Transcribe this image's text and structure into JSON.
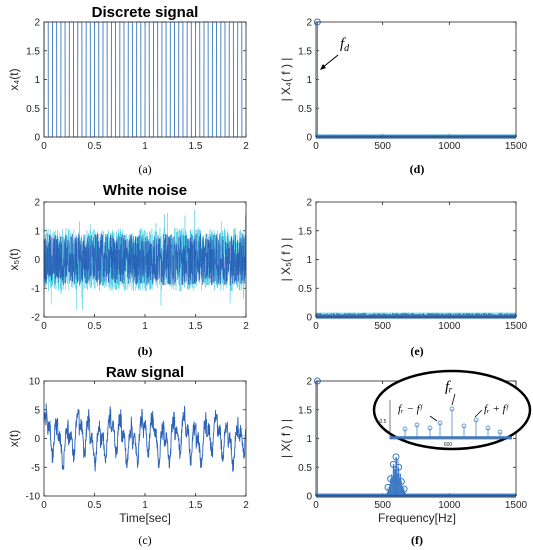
{
  "colors": {
    "signal": "#2a62b8",
    "signal_light": "#4fd0e6",
    "marker": "#3b78c4",
    "axis": "#262626"
  },
  "chart_data": [
    {
      "type": "line",
      "title": "Discrete signal",
      "ylabel": "x₄(t)",
      "xlabel": "",
      "panel_label": "(a)",
      "xlim": [
        0,
        2
      ],
      "ylim": [
        0,
        2
      ],
      "xticks": [
        "0",
        "0.5",
        "1",
        "1.5",
        "2"
      ],
      "yticks": [
        "0",
        "0.5",
        "1",
        "1.5",
        "2"
      ],
      "signal": "square",
      "amplitude": [
        0,
        2
      ],
      "cycles": 24
    },
    {
      "type": "line",
      "title": "",
      "ylabel": "| X₄( f ) |",
      "xlabel": "",
      "panel_label": "(d)",
      "xlim": [
        0,
        1500
      ],
      "ylim": [
        0,
        2
      ],
      "xticks": [
        "0",
        "500",
        "1000",
        "1500"
      ],
      "yticks": [
        "0",
        "0.5",
        "1",
        "1.5",
        "2"
      ],
      "peaks": [
        {
          "x": 10,
          "y": 2
        }
      ],
      "annotation": "f_d"
    },
    {
      "type": "line",
      "title": "White noise",
      "ylabel": "x₅(t)",
      "xlabel": "",
      "panel_label": "(b)",
      "xlim": [
        0,
        2
      ],
      "ylim": [
        -2,
        2
      ],
      "xticks": [
        "0",
        "0.5",
        "1",
        "1.5",
        "2"
      ],
      "yticks": [
        "-2",
        "-1",
        "0",
        "1",
        "2"
      ],
      "signal": "noise",
      "noise_range": [
        -1.6,
        1.6
      ]
    },
    {
      "type": "line",
      "title": "",
      "ylabel": "| X₅( f ) |",
      "xlabel": "",
      "panel_label": "(e)",
      "xlim": [
        0,
        1500
      ],
      "ylim": [
        0,
        2
      ],
      "xticks": [
        "0",
        "500",
        "1000",
        "1500"
      ],
      "yticks": [
        "0",
        "0.5",
        "1",
        "1.5",
        "2"
      ],
      "noise_floor": 0.05
    },
    {
      "type": "line",
      "title": "Raw signal",
      "ylabel": "x(t)",
      "xlabel": "Time[sec]",
      "panel_label": "(c)",
      "xlim": [
        0,
        2
      ],
      "ylim": [
        -10,
        10
      ],
      "xticks": [
        "0",
        "0.5",
        "1",
        "1.5",
        "2"
      ],
      "yticks": [
        "-10",
        "-5",
        "0",
        "5",
        "10"
      ],
      "signal": "raw",
      "range": [
        -6,
        7
      ]
    },
    {
      "type": "line",
      "title": "",
      "ylabel": "| X( f ) |",
      "xlabel": "Frequency[Hz]",
      "panel_label": "(f)",
      "xlim": [
        0,
        1500
      ],
      "ylim": [
        0,
        2
      ],
      "xticks": [
        "0",
        "500",
        "1000",
        "1500"
      ],
      "yticks": [
        "0",
        "0.5",
        "1",
        "1.5",
        "2"
      ],
      "peaks": [
        {
          "x": 10,
          "y": 2
        },
        {
          "x": 540,
          "y": 0.15
        },
        {
          "x": 560,
          "y": 0.3
        },
        {
          "x": 580,
          "y": 0.55
        },
        {
          "x": 600,
          "y": 0.68
        },
        {
          "x": 620,
          "y": 0.5
        },
        {
          "x": 640,
          "y": 0.25
        },
        {
          "x": 660,
          "y": 0.12
        }
      ],
      "inset": {
        "labels": [
          "fᵣ − fᶠ",
          "fᵣ",
          "fᵣ + fᶠ"
        ],
        "xtick": "600",
        "ytick": "0.5"
      }
    }
  ]
}
